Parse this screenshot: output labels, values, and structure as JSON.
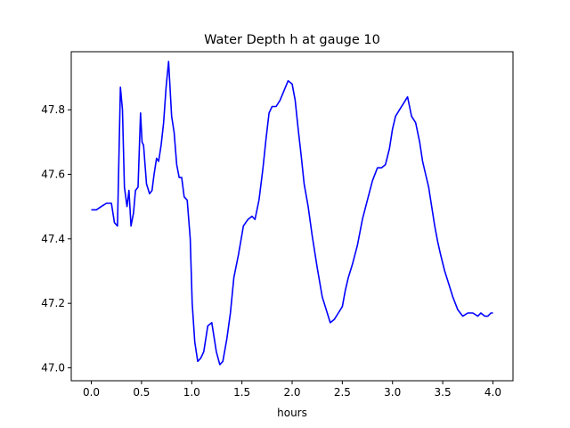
{
  "chart_data": {
    "type": "line",
    "title": "Water Depth h at gauge 10",
    "xlabel": "hours",
    "ylabel": "",
    "xlim": [
      -0.2,
      4.2
    ],
    "ylim": [
      46.96,
      47.98
    ],
    "xticks": [
      0.0,
      0.5,
      1.0,
      1.5,
      2.0,
      2.5,
      3.0,
      3.5,
      4.0
    ],
    "xtick_labels": [
      "0.0",
      "0.5",
      "1.0",
      "1.5",
      "2.0",
      "2.5",
      "3.0",
      "3.5",
      "4.0"
    ],
    "yticks": [
      47.0,
      47.2,
      47.4,
      47.6,
      47.8
    ],
    "ytick_labels": [
      "47.0",
      "47.2",
      "47.4",
      "47.6",
      "47.8"
    ],
    "grid": false,
    "line_color": "#0000ff",
    "series": [
      {
        "x": [
          0.0,
          0.05,
          0.1,
          0.15,
          0.2,
          0.23,
          0.26,
          0.29,
          0.31,
          0.33,
          0.355,
          0.375,
          0.395,
          0.42,
          0.44,
          0.465,
          0.49,
          0.505,
          0.52,
          0.55,
          0.58,
          0.605,
          0.625,
          0.65,
          0.67,
          0.695,
          0.72,
          0.745,
          0.77,
          0.8,
          0.825,
          0.85,
          0.875,
          0.9,
          0.925,
          0.955,
          0.985,
          1.005,
          1.03,
          1.06,
          1.09,
          1.12,
          1.16,
          1.2,
          1.245,
          1.28,
          1.31,
          1.35,
          1.385,
          1.42,
          1.465,
          1.515,
          1.56,
          1.6,
          1.63,
          1.67,
          1.71,
          1.74,
          1.77,
          1.8,
          1.84,
          1.88,
          1.92,
          1.96,
          2.0,
          2.03,
          2.06,
          2.09,
          2.12,
          2.16,
          2.2,
          2.25,
          2.3,
          2.34,
          2.38,
          2.42,
          2.46,
          2.5,
          2.53,
          2.56,
          2.6,
          2.65,
          2.7,
          2.75,
          2.8,
          2.85,
          2.89,
          2.93,
          2.97,
          3.0,
          3.03,
          3.07,
          3.11,
          3.15,
          3.19,
          3.23,
          3.27,
          3.3,
          3.33,
          3.36,
          3.39,
          3.42,
          3.45,
          3.48,
          3.52,
          3.56,
          3.6,
          3.65,
          3.7,
          3.75,
          3.8,
          3.85,
          3.88,
          3.92,
          3.95,
          3.98,
          4.0
        ],
        "y": [
          47.49,
          47.49,
          47.5,
          47.51,
          47.51,
          47.45,
          47.44,
          47.87,
          47.8,
          47.56,
          47.5,
          47.55,
          47.44,
          47.48,
          47.55,
          47.56,
          47.79,
          47.7,
          47.69,
          47.57,
          47.54,
          47.55,
          47.6,
          47.65,
          47.64,
          47.69,
          47.76,
          47.87,
          47.95,
          47.78,
          47.73,
          47.63,
          47.59,
          47.59,
          47.53,
          47.52,
          47.4,
          47.2,
          47.08,
          47.02,
          47.03,
          47.05,
          47.13,
          47.14,
          47.05,
          47.01,
          47.02,
          47.09,
          47.17,
          47.28,
          47.35,
          47.44,
          47.46,
          47.47,
          47.46,
          47.52,
          47.62,
          47.71,
          47.79,
          47.81,
          47.81,
          47.83,
          47.86,
          47.89,
          47.88,
          47.83,
          47.74,
          47.66,
          47.57,
          47.5,
          47.41,
          47.31,
          47.22,
          47.18,
          47.14,
          47.15,
          47.17,
          47.19,
          47.24,
          47.28,
          47.32,
          47.38,
          47.46,
          47.52,
          47.58,
          47.62,
          47.62,
          47.63,
          47.68,
          47.74,
          47.78,
          47.8,
          47.82,
          47.84,
          47.78,
          47.76,
          47.7,
          47.64,
          47.6,
          47.56,
          47.5,
          47.44,
          47.39,
          47.35,
          47.3,
          47.26,
          47.22,
          47.18,
          47.16,
          47.17,
          47.17,
          47.16,
          47.17,
          47.16,
          47.16,
          47.17,
          47.17
        ]
      }
    ]
  }
}
